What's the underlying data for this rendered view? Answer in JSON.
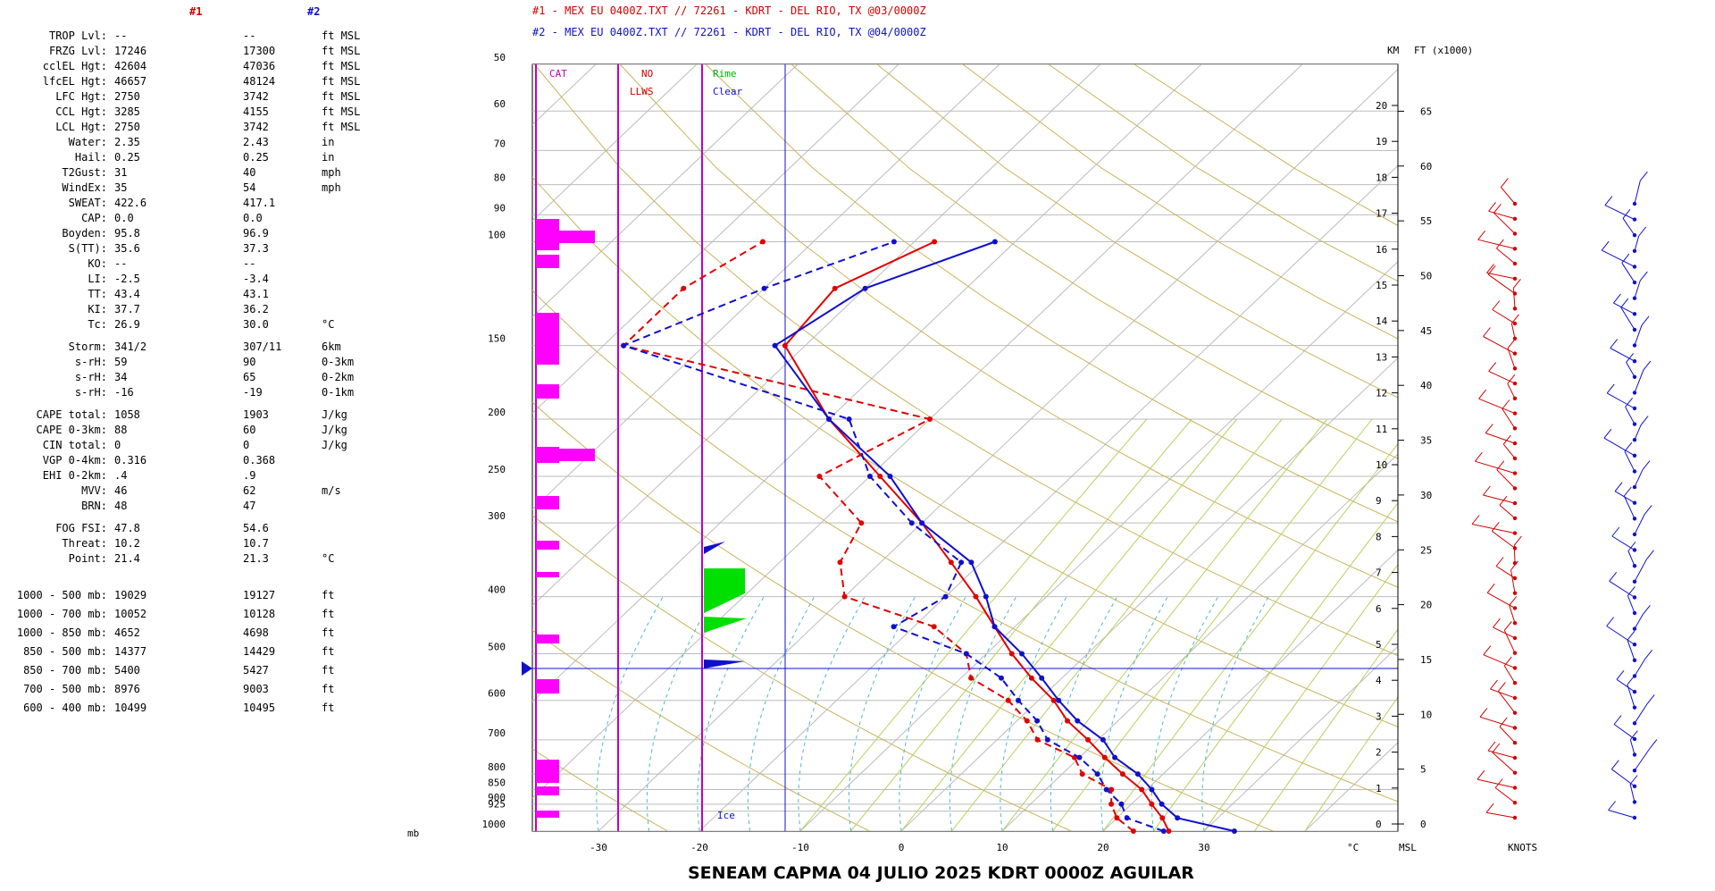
{
  "header": {
    "col1_label": "#1",
    "col2_label": "#2",
    "title1": "#1 - MEX EU 0400Z.TXT // 72261 - KDRT - DEL RIO, TX   @03/0000Z",
    "title2": "#2 - MEX EU 0400Z.TXT // 72261 - KDRT - DEL RIO, TX   @04/0000Z"
  },
  "stats": {
    "rows": [
      {
        "label": "TROP Lvl:",
        "v1": "--",
        "v2": "--",
        "unit": "ft MSL"
      },
      {
        "label": "FRZG Lvl:",
        "v1": "17246",
        "v2": "17300",
        "unit": "ft MSL"
      },
      {
        "label": "cclEL Hgt:",
        "v1": "42604",
        "v2": "47036",
        "unit": "ft MSL"
      },
      {
        "label": "lfcEL Hgt:",
        "v1": "46657",
        "v2": "48124",
        "unit": "ft MSL"
      },
      {
        "label": "LFC Hgt:",
        "v1": "2750",
        "v2": "3742",
        "unit": "ft MSL"
      },
      {
        "label": "CCL Hgt:",
        "v1": "3285",
        "v2": "4155",
        "unit": "ft MSL"
      },
      {
        "label": "LCL Hgt:",
        "v1": "2750",
        "v2": "3742",
        "unit": "ft MSL"
      },
      {
        "label": "Water:",
        "v1": "2.35",
        "v2": "2.43",
        "unit": "in"
      },
      {
        "label": "Hail:",
        "v1": "0.25",
        "v2": "0.25",
        "unit": "in"
      },
      {
        "label": "T2Gust:",
        "v1": "31",
        "v2": "40",
        "unit": "mph"
      },
      {
        "label": "WindEx:",
        "v1": "35",
        "v2": "54",
        "unit": "mph"
      },
      {
        "label": "SWEAT:",
        "v1": "422.6",
        "v2": "417.1",
        "unit": ""
      },
      {
        "label": "CAP:",
        "v1": "0.0",
        "v2": "0.0",
        "unit": ""
      },
      {
        "label": "Boyden:",
        "v1": "95.8",
        "v2": "96.9",
        "unit": ""
      },
      {
        "label": "S(TT):",
        "v1": "35.6",
        "v2": "37.3",
        "unit": ""
      },
      {
        "label": "KO:",
        "v1": "--",
        "v2": "--",
        "unit": ""
      },
      {
        "label": "LI:",
        "v1": "-2.5",
        "v2": "-3.4",
        "unit": ""
      },
      {
        "label": "TT:",
        "v1": "43.4",
        "v2": "43.1",
        "unit": ""
      },
      {
        "label": "KI:",
        "v1": "37.7",
        "v2": "36.2",
        "unit": ""
      },
      {
        "label": "Tc:",
        "v1": "26.9",
        "v2": "30.0",
        "unit": "°C"
      },
      {
        "label": "Storm:",
        "v1": "341/2",
        "v2": "307/11",
        "unit": "6km"
      },
      {
        "label": "s-rH:",
        "v1": "59",
        "v2": "90",
        "unit": "0-3km"
      },
      {
        "label": "s-rH:",
        "v1": "34",
        "v2": "65",
        "unit": "0-2km"
      },
      {
        "label": "s-rH:",
        "v1": "-16",
        "v2": "-19",
        "unit": "0-1km"
      },
      {
        "label": "CAPE total:",
        "v1": "1058",
        "v2": "1903",
        "unit": "J/kg"
      },
      {
        "label": "CAPE 0-3km:",
        "v1": "88",
        "v2": "60",
        "unit": "J/kg"
      },
      {
        "label": "CIN total:",
        "v1": "0",
        "v2": "0",
        "unit": "J/kg"
      },
      {
        "label": "VGP 0-4km:",
        "v1": "0.316",
        "v2": "0.368",
        "unit": ""
      },
      {
        "label": "EHI 0-2km:",
        "v1": ".4",
        "v2": ".9",
        "unit": ""
      },
      {
        "label": "MVV:",
        "v1": "46",
        "v2": "62",
        "unit": "m/s"
      },
      {
        "label": "BRN:",
        "v1": "48",
        "v2": "47",
        "unit": ""
      },
      {
        "label": "FOG FSI:",
        "v1": "47.8",
        "v2": "54.6",
        "unit": ""
      },
      {
        "label": "Threat:",
        "v1": "10.2",
        "v2": "10.7",
        "unit": ""
      },
      {
        "label": "Point:",
        "v1": "21.4",
        "v2": "21.3",
        "unit": "°C"
      },
      {
        "label": "1000 - 500 mb:",
        "v1": "19029",
        "v2": "19127",
        "unit": "ft"
      },
      {
        "label": "1000 - 700 mb:",
        "v1": "10052",
        "v2": "10128",
        "unit": "ft"
      },
      {
        "label": "1000 - 850 mb:",
        "v1": "4652",
        "v2": "4698",
        "unit": "ft"
      },
      {
        "label": "850 - 500 mb:",
        "v1": "14377",
        "v2": "14429",
        "unit": "ft"
      },
      {
        "label": "850 - 700 mb:",
        "v1": "5400",
        "v2": "5427",
        "unit": "ft"
      },
      {
        "label": "700 - 500 mb:",
        "v1": "8976",
        "v2": "9003",
        "unit": "ft"
      },
      {
        "label": "600 - 400 mb:",
        "v1": "10499",
        "v2": "10495",
        "unit": "ft"
      }
    ]
  },
  "chart_data": {
    "type": "skew-t log-p sounding",
    "pressure_axis_label": "mb",
    "temperature_axis_label": "°C",
    "pressure_ticks": [
      50,
      60,
      70,
      80,
      90,
      100,
      150,
      200,
      250,
      300,
      400,
      500,
      600,
      700,
      800,
      850,
      900,
      925,
      1000
    ],
    "temperature_ticks": [
      -30,
      -20,
      -10,
      0,
      10,
      20,
      30
    ],
    "km_axis_label": "KM",
    "ft_axis_label": "FT (x1000)",
    "msl_label": "MSL",
    "knots_label": "KNOTS",
    "km_ticks": [
      0,
      1,
      2,
      3,
      4,
      5,
      6,
      7,
      8,
      9,
      10,
      11,
      12,
      13,
      14,
      15,
      16,
      17,
      18,
      19,
      20
    ],
    "ft_ticks": [
      0,
      5,
      10,
      15,
      20,
      25,
      30,
      35,
      40,
      45,
      50,
      55,
      60,
      65
    ],
    "panel_labels": {
      "cat": "CAT",
      "no": "NO",
      "llws": "LLWS",
      "rime": "Rime",
      "clear": "Clear",
      "ice": "Ice"
    },
    "series": [
      {
        "name": "#1",
        "color": "#e00000",
        "temperature": [
          [
            1000,
            26.5
          ],
          [
            950,
            24.5
          ],
          [
            900,
            22
          ],
          [
            850,
            19.5
          ],
          [
            800,
            16
          ],
          [
            750,
            12.5
          ],
          [
            700,
            9
          ],
          [
            650,
            5
          ],
          [
            600,
            1.5
          ],
          [
            550,
            -3
          ],
          [
            500,
            -7.5
          ],
          [
            450,
            -12
          ],
          [
            400,
            -17
          ],
          [
            350,
            -23
          ],
          [
            300,
            -30
          ],
          [
            250,
            -39
          ],
          [
            200,
            -50
          ],
          [
            150,
            -62
          ],
          [
            120,
            -63
          ],
          [
            100,
            -58
          ]
        ],
        "dewpoint": [
          [
            1000,
            23
          ],
          [
            950,
            20
          ],
          [
            900,
            18
          ],
          [
            850,
            16.5
          ],
          [
            800,
            12
          ],
          [
            750,
            9.5
          ],
          [
            700,
            4
          ],
          [
            650,
            1
          ],
          [
            600,
            -3
          ],
          [
            550,
            -9
          ],
          [
            500,
            -12
          ],
          [
            450,
            -18
          ],
          [
            400,
            -30
          ],
          [
            350,
            -34
          ],
          [
            300,
            -36
          ],
          [
            250,
            -45
          ],
          [
            200,
            -40
          ],
          [
            150,
            -78
          ],
          [
            120,
            -78
          ],
          [
            100,
            -75
          ]
        ]
      },
      {
        "name": "#2",
        "color": "#1010cc",
        "temperature": [
          [
            1000,
            33
          ],
          [
            950,
            26
          ],
          [
            900,
            23
          ],
          [
            850,
            20.5
          ],
          [
            800,
            17.5
          ],
          [
            750,
            13.5
          ],
          [
            700,
            10.5
          ],
          [
            650,
            6
          ],
          [
            600,
            2
          ],
          [
            550,
            -2
          ],
          [
            500,
            -6.5
          ],
          [
            450,
            -12
          ],
          [
            400,
            -16
          ],
          [
            350,
            -21
          ],
          [
            300,
            -30
          ],
          [
            250,
            -38
          ],
          [
            200,
            -50
          ],
          [
            150,
            -63
          ],
          [
            120,
            -60
          ],
          [
            100,
            -52
          ]
        ],
        "dewpoint": [
          [
            1000,
            26
          ],
          [
            950,
            21
          ],
          [
            900,
            19
          ],
          [
            850,
            16
          ],
          [
            800,
            13.5
          ],
          [
            750,
            10
          ],
          [
            700,
            5
          ],
          [
            650,
            2
          ],
          [
            600,
            -2
          ],
          [
            550,
            -6
          ],
          [
            500,
            -12
          ],
          [
            450,
            -22
          ],
          [
            400,
            -20
          ],
          [
            350,
            -22
          ],
          [
            300,
            -31
          ],
          [
            250,
            -40
          ],
          [
            200,
            -48
          ],
          [
            150,
            -78
          ],
          [
            120,
            -70
          ],
          [
            100,
            -62
          ]
        ]
      }
    ],
    "wind_series": [
      {
        "name": "#1",
        "color": "#d00000",
        "count": 42
      },
      {
        "name": "#2",
        "color": "#1010cc",
        "count": 40
      }
    ]
  },
  "footer": {
    "title": "SENEAM  CAPMA  04 JULIO 2025  KDRT  0000Z  AGUILAR"
  }
}
